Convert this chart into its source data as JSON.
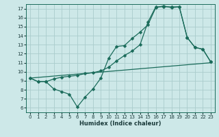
{
  "xlabel": "Humidex (Indice chaleur)",
  "bg_color": "#cde8e8",
  "grid_color": "#aacccc",
  "line_color": "#1a6b5a",
  "xlim": [
    -0.5,
    23.5
  ],
  "ylim": [
    5.5,
    17.5
  ],
  "xticks": [
    0,
    1,
    2,
    3,
    4,
    5,
    6,
    7,
    8,
    9,
    10,
    11,
    12,
    13,
    14,
    15,
    16,
    17,
    18,
    19,
    20,
    21,
    22,
    23
  ],
  "yticks": [
    6,
    7,
    8,
    9,
    10,
    11,
    12,
    13,
    14,
    15,
    16,
    17
  ],
  "line1_x": [
    0,
    1,
    2,
    3,
    4,
    5,
    6,
    7,
    8,
    9,
    10,
    11,
    12,
    13,
    14,
    15,
    16,
    17,
    18,
    19,
    20,
    21,
    22,
    23
  ],
  "line1_y": [
    9.3,
    8.9,
    8.9,
    8.1,
    7.8,
    7.5,
    6.1,
    7.2,
    8.1,
    9.3,
    11.5,
    12.8,
    12.9,
    13.7,
    14.4,
    15.2,
    17.1,
    17.3,
    17.1,
    17.2,
    13.8,
    12.7,
    12.5,
    11.1
  ],
  "line2_x": [
    0,
    23
  ],
  "line2_y": [
    9.3,
    11.0
  ],
  "line3_x": [
    0,
    1,
    2,
    3,
    4,
    5,
    6,
    7,
    8,
    9,
    10,
    11,
    12,
    13,
    14,
    15,
    16,
    17,
    18,
    19,
    20,
    21,
    22,
    23
  ],
  "line3_y": [
    9.3,
    8.9,
    8.9,
    9.2,
    9.4,
    9.5,
    9.6,
    9.8,
    9.9,
    10.1,
    10.5,
    11.2,
    11.8,
    12.3,
    13.0,
    15.5,
    17.2,
    17.2,
    17.2,
    17.2,
    13.8,
    12.7,
    12.5,
    11.1
  ]
}
